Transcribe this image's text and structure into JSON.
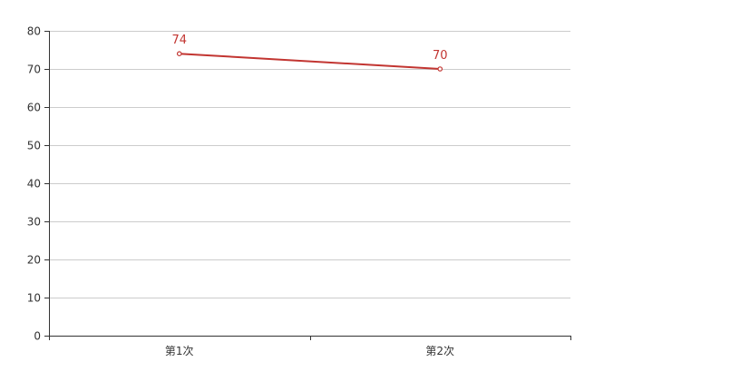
{
  "chart_data": {
    "type": "line",
    "categories": [
      "第1次",
      "第2次"
    ],
    "series": [
      {
        "values": [
          74,
          70
        ],
        "color": "#c23531"
      }
    ],
    "ylim": [
      0,
      80
    ],
    "yticks": [
      0,
      10,
      20,
      30,
      40,
      50,
      60,
      70,
      80
    ],
    "grid": true,
    "data_labels": true
  }
}
